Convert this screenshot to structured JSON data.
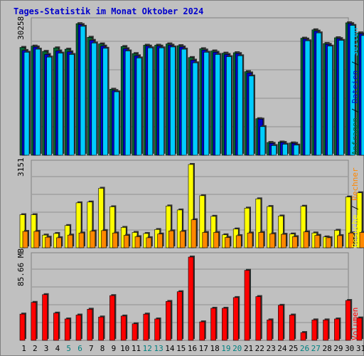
{
  "title": "Tages-Statistik im Monat Oktober 2024",
  "colors": {
    "background": "#c0c0c0",
    "title": "#0000cc",
    "hits": "#006633",
    "files": "#0000cc",
    "pages": "#00ccff",
    "visits": "#ffff00",
    "sites": "#ff8800",
    "volume": "#ff0000",
    "weekend": "#008080",
    "weekday": "#000000"
  },
  "chart_data": [
    {
      "type": "bar",
      "panel": "top",
      "max_label": "30258",
      "ylim": [
        0,
        30258
      ],
      "x": [
        1,
        2,
        3,
        4,
        5,
        6,
        7,
        8,
        9,
        10,
        11,
        12,
        13,
        14,
        15,
        16,
        17,
        18,
        19,
        20,
        21,
        22,
        23,
        24,
        25,
        26,
        27,
        28,
        29,
        30,
        31
      ],
      "legend": [
        {
          "label": "Anfragen",
          "color": "#006633"
        },
        {
          "label": "Dateien",
          "color": "#0000cc"
        },
        {
          "label": "Seiten",
          "color": "#00ccff"
        }
      ],
      "series": [
        {
          "name": "Anfragen",
          "values": [
            24500,
            24800,
            23600,
            24400,
            24100,
            29900,
            26800,
            25300,
            15000,
            24700,
            23100,
            25000,
            25000,
            25300,
            24900,
            22200,
            24200,
            23700,
            23200,
            23300,
            19000,
            8300,
            2900,
            3000,
            2800,
            26600,
            28500,
            25400,
            26700,
            30100,
            27800
          ]
        },
        {
          "name": "Dateien",
          "values": [
            23800,
            24600,
            22900,
            23700,
            23500,
            29700,
            26100,
            24800,
            14700,
            24200,
            22600,
            24800,
            24800,
            25000,
            24600,
            21600,
            23900,
            23400,
            22900,
            23100,
            18700,
            8200,
            2700,
            2900,
            2700,
            26400,
            28200,
            25200,
            26500,
            29900,
            27600
          ]
        },
        {
          "name": "Seiten",
          "values": [
            23400,
            24100,
            22300,
            23200,
            22900,
            29300,
            25500,
            24300,
            14400,
            23700,
            22100,
            24400,
            24400,
            24600,
            24100,
            21000,
            23400,
            22900,
            22400,
            22600,
            18000,
            6500,
            2200,
            2500,
            2300,
            26000,
            27800,
            24800,
            26100,
            29500,
            27200
          ]
        }
      ]
    },
    {
      "type": "bar",
      "panel": "middle",
      "max_label": "3151",
      "ylim": [
        0,
        3151
      ],
      "x": [
        1,
        2,
        3,
        4,
        5,
        6,
        7,
        8,
        9,
        10,
        11,
        12,
        13,
        14,
        15,
        16,
        17,
        18,
        19,
        20,
        21,
        22,
        23,
        24,
        25,
        26,
        27,
        28,
        29,
        30,
        31
      ],
      "legend": [
        {
          "label": "Besuche",
          "color": "#ffff00"
        },
        {
          "label": "Rechner",
          "color": "#ff8800"
        }
      ],
      "series": [
        {
          "name": "Besuche",
          "values": [
            1250,
            1250,
            480,
            540,
            840,
            1700,
            1730,
            2250,
            1550,
            770,
            580,
            540,
            690,
            1580,
            1430,
            3151,
            1970,
            1190,
            490,
            710,
            1500,
            1850,
            1560,
            1200,
            520,
            1570,
            560,
            410,
            660,
            1920,
            2080
          ]
        },
        {
          "name": "Rechner",
          "values": [
            620,
            620,
            400,
            380,
            480,
            560,
            630,
            650,
            560,
            470,
            420,
            380,
            520,
            640,
            620,
            1060,
            580,
            580,
            390,
            460,
            560,
            580,
            530,
            510,
            420,
            600,
            470,
            380,
            460,
            560,
            580
          ]
        }
      ]
    },
    {
      "type": "bar",
      "panel": "bottom",
      "max_label": "85.66 MB",
      "ylim": [
        0,
        85.66
      ],
      "x": [
        1,
        2,
        3,
        4,
        5,
        6,
        7,
        8,
        9,
        10,
        11,
        12,
        13,
        14,
        15,
        16,
        17,
        18,
        19,
        20,
        21,
        22,
        23,
        24,
        25,
        26,
        27,
        28,
        29,
        30,
        31
      ],
      "legend": [
        {
          "label": "Volumen",
          "color": "#ff0000"
        }
      ],
      "series": [
        {
          "name": "Volumen",
          "values": [
            27,
            39,
            47,
            28,
            22,
            26,
            32,
            24,
            46,
            25,
            17,
            27,
            22,
            40,
            50,
            85.66,
            19,
            33,
            33,
            44,
            72,
            45,
            21,
            36,
            26,
            8,
            21,
            21,
            22,
            41,
            23
          ]
        }
      ]
    }
  ],
  "x_labels": [
    "1",
    "2",
    "3",
    "4",
    "5",
    "6",
    "7",
    "8",
    "9",
    "10",
    "11",
    "12",
    "13",
    "14",
    "15",
    "16",
    "17",
    "18",
    "19",
    "20",
    "21",
    "22",
    "23",
    "24",
    "25",
    "26",
    "27",
    "28",
    "29",
    "30",
    "31"
  ],
  "weekend_days": [
    5,
    6,
    12,
    13,
    19,
    20,
    26,
    27
  ]
}
